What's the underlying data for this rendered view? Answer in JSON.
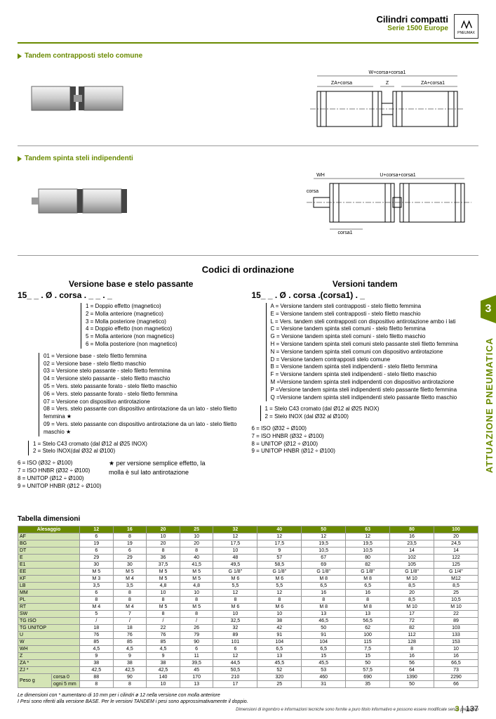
{
  "header": {
    "title": "Cilindri compatti",
    "subtitle": "Serie 1500 Europe",
    "brand": "PNEUMAX"
  },
  "section1": {
    "title": "Tandem contrapposti stelo comune"
  },
  "diagram1": {
    "top": "W+corsa+corsa1",
    "left": "ZA+corsa",
    "mid": "Z",
    "right": "ZA+corsa1"
  },
  "section2": {
    "title": "Tandem spinta steli indipendenti"
  },
  "diagram2": {
    "wh": "WH",
    "u": "U+corsa+corsa1",
    "corsa": "corsa",
    "corsa1": "corsa1"
  },
  "ordering": {
    "title": "Codici di ordinazione",
    "left": {
      "subtitle": "Versione base e stelo passante",
      "code": "15_ _ . Ø . corsa . _ _ . _",
      "block1": [
        "1 = Doppio effetto (magnetico)",
        "2 = Molla anteriore (magnetico)",
        "3 = Molla posteriore (magnetico)",
        "4 = Doppio effetto (non magnetico)",
        "5 = Molla anteriore (non magnetico)",
        "6 = Molla posteriore (non magnetico)"
      ],
      "block2": [
        "01 = Versione base - stelo filetto femmina",
        "02 = Versione base - stelo filetto maschio",
        "03 = Versione stelo passante - stelo filetto femmina",
        "04 = Versione stelo passante - stelo filetto maschio",
        "05 = Vers. stelo passante forato - stelo filetto maschio",
        "06 = Vers. stelo passante forato - stelo filetto femmina",
        "07 = Versione con dispositivo antirotazione",
        "08 = Vers. stelo passante con dispositivo antirotazione da un lato - stelo filetto femmina ★",
        "09 = Vers. stelo passante con dispositivo antirotazione da un lato - stelo filetto maschio ★"
      ],
      "block3": [
        "1 = Stelo C43 cromato (dal Ø12 al Ø25 INOX)",
        "2 = Stelo INOX(dal Ø32 al Ø100)"
      ],
      "block4": [
        "6 = ISO (Ø32 ÷ Ø100)",
        "7 = ISO HNBR (Ø32 ÷ Ø100)",
        "8 = UNITOP (Ø12 ÷ Ø100)",
        "9 = UNITOP HNBR (Ø12 ÷ Ø100)"
      ],
      "note": "★ per versione semplice effetto, la molla è sul lato antirotazione"
    },
    "right": {
      "subtitle": "Versioni tandem",
      "code": "15_ _ . Ø . corsa .(corsa1) . _",
      "block1": [
        "A = Versione tandem steli contrapposti - stelo filetto femmina",
        "E = Versione tandem steli contrapposti - stelo filetto maschio",
        "L = Vers. tandem steli contrapposti con dispositivo antirotazione ambo i lati",
        "C = Versione tandem spinta steli comuni - stelo filetto femmina",
        "G = Versione tandem spinta steli comuni - stelo filetto maschio",
        "H = Versione tandem spinta steli comuni stelo passante steli filetto femmina",
        "N = Versione tandem spinta steli comuni con dispositivo antirotazione",
        "D = Versione tandem contrapposti stelo comune",
        "B = Versione tandem spinta steli indipendenti - stelo filetto femmina",
        "F = Versione tandem spinta steli indipendenti - stelo filetto maschio",
        "M =Versione tandem spinta steli indipendenti con dispositivo antirotazione",
        "P =Versione tandem spinta steli indipendenti stelo passante filetto femmina",
        "Q =Versione tandem spinta steli indipendenti stelo passante filetto maschio"
      ],
      "block2": [
        "1 = Stelo C43 cromato (dal Ø12 al Ø25 INOX)",
        "2 = Stelo INOX (dal Ø32 al Ø100)"
      ],
      "block3": [
        "6 = ISO (Ø32 ÷ Ø100)",
        "7 = ISO HNBR (Ø32 ÷ Ø100)",
        "8 = UNITOP (Ø12 ÷ Ø100)",
        "9 = UNITOP HNBR (Ø12 ÷ Ø100)"
      ]
    }
  },
  "table": {
    "title": "Tabella dimensioni",
    "header": [
      "Alesaggio",
      "12",
      "16",
      "20",
      "25",
      "32",
      "40",
      "50",
      "63",
      "80",
      "100"
    ],
    "rows": [
      [
        "AF",
        "6",
        "8",
        "10",
        "10",
        "12",
        "12",
        "12",
        "12",
        "16",
        "20"
      ],
      [
        "BG",
        "19",
        "19",
        "20",
        "20",
        "17,5",
        "17,5",
        "19,5",
        "19,5",
        "23,5",
        "24,5"
      ],
      [
        "DT",
        "6",
        "6",
        "8",
        "8",
        "10",
        "9",
        "10,5",
        "10,5",
        "14",
        "14"
      ],
      [
        "E",
        "29",
        "29",
        "36",
        "40",
        "48",
        "57",
        "67",
        "80",
        "102",
        "122"
      ],
      [
        "E1",
        "30",
        "30",
        "37,5",
        "41,5",
        "49,5",
        "58,5",
        "69",
        "82",
        "105",
        "125"
      ],
      [
        "EE",
        "M 5",
        "M 5",
        "M 5",
        "M 5",
        "G 1/8\"",
        "G 1/8\"",
        "G 1/8\"",
        "G 1/8\"",
        "G 1/8\"",
        "G 1/4\""
      ],
      [
        "KF",
        "M 3",
        "M 4",
        "M 5",
        "M 5",
        "M 6",
        "M 6",
        "M 8",
        "M 8",
        "M 10",
        "M12"
      ],
      [
        "LB",
        "3,5",
        "3,5",
        "4,8",
        "4,8",
        "5,5",
        "5,5",
        "6,5",
        "6,5",
        "8,5",
        "8,5"
      ],
      [
        "MM",
        "6",
        "8",
        "10",
        "10",
        "12",
        "12",
        "16",
        "16",
        "20",
        "25"
      ],
      [
        "PL",
        "8",
        "8",
        "8",
        "8",
        "8",
        "8",
        "8",
        "8",
        "8,5",
        "10,5"
      ],
      [
        "RT",
        "M 4",
        "M 4",
        "M 5",
        "M 5",
        "M 6",
        "M 6",
        "M 8",
        "M 8",
        "M 10",
        "M 10"
      ],
      [
        "SW",
        "5",
        "7",
        "8",
        "8",
        "10",
        "10",
        "13",
        "13",
        "17",
        "22"
      ],
      [
        "TG ISO",
        "/",
        "/",
        "/",
        "/",
        "32,5",
        "38",
        "46,5",
        "56,5",
        "72",
        "89"
      ],
      [
        "TG UNITOP",
        "18",
        "18",
        "22",
        "26",
        "32",
        "42",
        "50",
        "62",
        "82",
        "103"
      ],
      [
        "U",
        "76",
        "76",
        "76",
        "79",
        "89",
        "91",
        "91",
        "100",
        "112",
        "133"
      ],
      [
        "W",
        "85",
        "85",
        "85",
        "90",
        "101",
        "104",
        "104",
        "115",
        "128",
        "153"
      ],
      [
        "WH",
        "4,5",
        "4,5",
        "4,5",
        "6",
        "6",
        "6,5",
        "6,5",
        "7,5",
        "8",
        "10"
      ],
      [
        "Z",
        "9",
        "9",
        "9",
        "11",
        "12",
        "13",
        "15",
        "15",
        "16",
        "16"
      ],
      [
        "ZA *",
        "38",
        "38",
        "38",
        "39,5",
        "44,5",
        "45,5",
        "45,5",
        "50",
        "56",
        "66,5"
      ],
      [
        "ZJ *",
        "42,5",
        "42,5",
        "42,5",
        "45",
        "50,5",
        "52",
        "53",
        "57,5",
        "64",
        "73"
      ]
    ],
    "peso": {
      "label": "Peso g",
      "r1": [
        "corsa 0",
        "88",
        "90",
        "140",
        "170",
        "210",
        "320",
        "460",
        "690",
        "1390",
        "2290"
      ],
      "r2": [
        "ogni 5 mm",
        "8",
        "8",
        "10",
        "13",
        "17",
        "25",
        "31",
        "35",
        "50",
        "66"
      ]
    }
  },
  "footnotes": {
    "l1": "Le dimensioni con * aumentano di 10 mm per i cilindri ø 12 nella versione con molla anteriore",
    "l2": "I Pesi sono riferiti alla versione BASE. Per le versioni TANDEM i pesi sono approssimativamente il doppio."
  },
  "footer": "Dimensioni di ingombro e informazioni tecniche sono fornite a puro titolo informativo e possono essere modificate senza preavviso",
  "pagenum": {
    "sec": "3",
    "page": "137"
  },
  "sidetab": "3",
  "sidetxt": "ATTUAZIONE PNEUMATICA"
}
